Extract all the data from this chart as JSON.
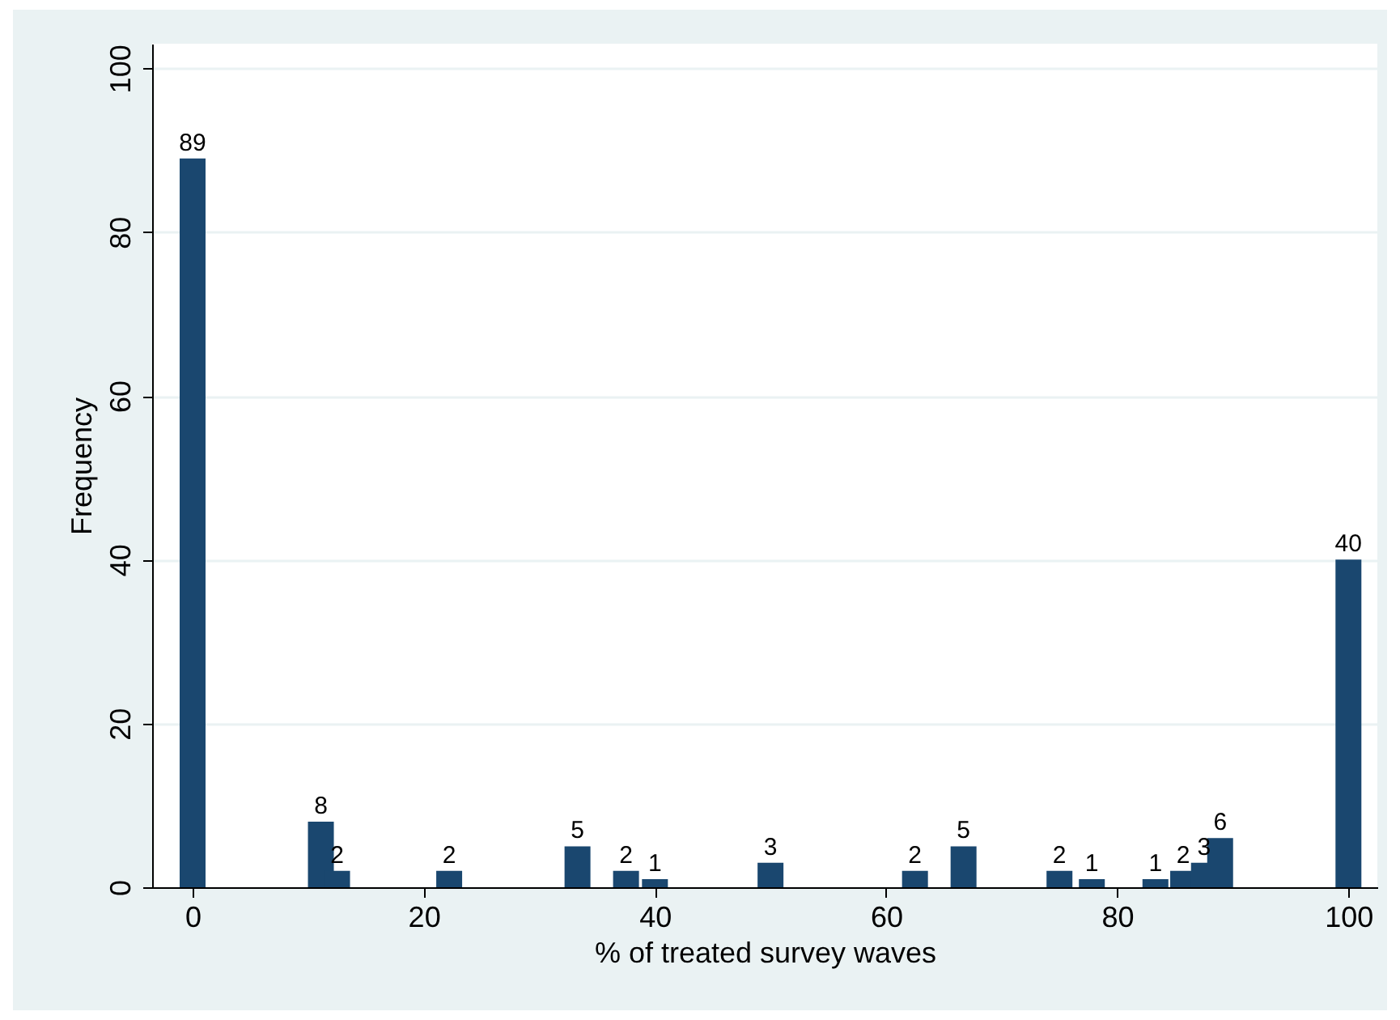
{
  "chart_data": {
    "type": "bar",
    "xlabel": "% of treated survey waves",
    "ylabel": "Frequency",
    "x": [
      0,
      11.1,
      12.5,
      22.2,
      33.3,
      37.5,
      40,
      50,
      62.5,
      66.7,
      75,
      77.8,
      83.3,
      85.7,
      87.5,
      88.9,
      100
    ],
    "values": [
      89,
      8,
      2,
      2,
      5,
      2,
      1,
      3,
      2,
      5,
      2,
      1,
      1,
      2,
      3,
      6,
      40
    ],
    "color": "#1a476f",
    "data_labels": true,
    "xlim": [
      -3.5,
      102.5
    ],
    "xticks": [
      0,
      20,
      40,
      60,
      80,
      100
    ],
    "ylim": [
      0,
      103
    ],
    "yticks": [
      0,
      20,
      40,
      60,
      80,
      100
    ],
    "grid": "y"
  }
}
